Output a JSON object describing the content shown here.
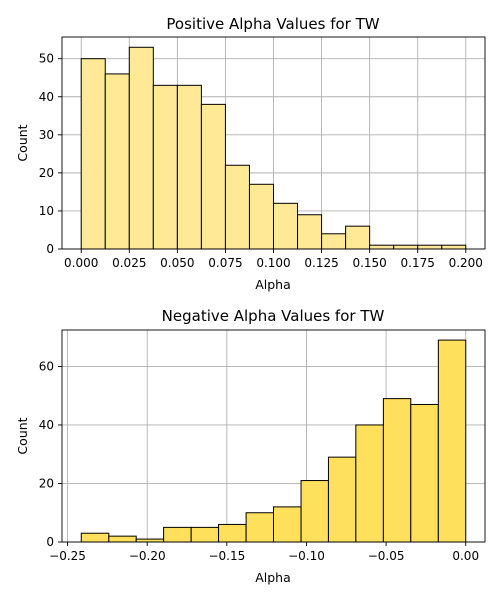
{
  "chart_data": [
    {
      "type": "bar",
      "title": "Positive Alpha Values for TW",
      "xlabel": "Alpha",
      "ylabel": "Count",
      "color": "#ffe996",
      "grid": true,
      "bins": [
        {
          "x0": 0.0,
          "x1": 0.0125,
          "count": 50
        },
        {
          "x0": 0.0125,
          "x1": 0.025,
          "count": 46
        },
        {
          "x0": 0.025,
          "x1": 0.0375,
          "count": 53
        },
        {
          "x0": 0.0375,
          "x1": 0.05,
          "count": 43
        },
        {
          "x0": 0.05,
          "x1": 0.0625,
          "count": 43
        },
        {
          "x0": 0.0625,
          "x1": 0.075,
          "count": 38
        },
        {
          "x0": 0.075,
          "x1": 0.0875,
          "count": 22
        },
        {
          "x0": 0.0875,
          "x1": 0.1,
          "count": 17
        },
        {
          "x0": 0.1,
          "x1": 0.1125,
          "count": 12
        },
        {
          "x0": 0.1125,
          "x1": 0.125,
          "count": 9
        },
        {
          "x0": 0.125,
          "x1": 0.1375,
          "count": 4
        },
        {
          "x0": 0.1375,
          "x1": 0.15,
          "count": 6
        },
        {
          "x0": 0.15,
          "x1": 0.1625,
          "count": 1
        },
        {
          "x0": 0.1625,
          "x1": 0.175,
          "count": 1
        },
        {
          "x0": 0.175,
          "x1": 0.1875,
          "count": 1
        },
        {
          "x0": 0.1875,
          "x1": 0.2,
          "count": 1
        }
      ],
      "xlim": [
        -0.01,
        0.21
      ],
      "ylim": [
        0,
        55.7
      ],
      "xticks": [
        0.0,
        0.025,
        0.05,
        0.075,
        0.1,
        0.125,
        0.15,
        0.175,
        0.2
      ],
      "xtick_labels": [
        "0.000",
        "0.025",
        "0.050",
        "0.075",
        "0.100",
        "0.125",
        "0.150",
        "0.175",
        "0.200"
      ],
      "yticks": [
        0,
        10,
        20,
        30,
        40,
        50
      ],
      "ytick_labels": [
        "0",
        "10",
        "20",
        "30",
        "40",
        "50"
      ]
    },
    {
      "type": "bar",
      "title": "Negative Alpha Values for TW",
      "xlabel": "Alpha",
      "ylabel": "Count",
      "color": "#ffe05c",
      "grid": true,
      "bins": [
        {
          "x0": -0.2414,
          "x1": -0.2241,
          "count": 3
        },
        {
          "x0": -0.2241,
          "x1": -0.2069,
          "count": 2
        },
        {
          "x0": -0.2069,
          "x1": -0.1897,
          "count": 1
        },
        {
          "x0": -0.1897,
          "x1": -0.1724,
          "count": 5
        },
        {
          "x0": -0.1724,
          "x1": -0.1552,
          "count": 5
        },
        {
          "x0": -0.1552,
          "x1": -0.1379,
          "count": 6
        },
        {
          "x0": -0.1379,
          "x1": -0.1207,
          "count": 10
        },
        {
          "x0": -0.1207,
          "x1": -0.1034,
          "count": 12
        },
        {
          "x0": -0.1034,
          "x1": -0.0862,
          "count": 21
        },
        {
          "x0": -0.0862,
          "x1": -0.069,
          "count": 29
        },
        {
          "x0": -0.069,
          "x1": -0.0517,
          "count": 40
        },
        {
          "x0": -0.0517,
          "x1": -0.0345,
          "count": 49
        },
        {
          "x0": -0.0345,
          "x1": -0.0172,
          "count": 47
        },
        {
          "x0": -0.0172,
          "x1": 0.0,
          "count": 69
        }
      ],
      "xlim": [
        -0.2535,
        0.0121
      ],
      "ylim": [
        0,
        72.45
      ],
      "xticks": [
        -0.25,
        -0.2,
        -0.15,
        -0.1,
        -0.05,
        0.0
      ],
      "xtick_labels": [
        "−0.25",
        "−0.20",
        "−0.15",
        "−0.10",
        "−0.05",
        "0.00"
      ],
      "yticks": [
        0,
        20,
        40,
        60
      ],
      "ytick_labels": [
        "0",
        "20",
        "40",
        "60"
      ]
    }
  ]
}
